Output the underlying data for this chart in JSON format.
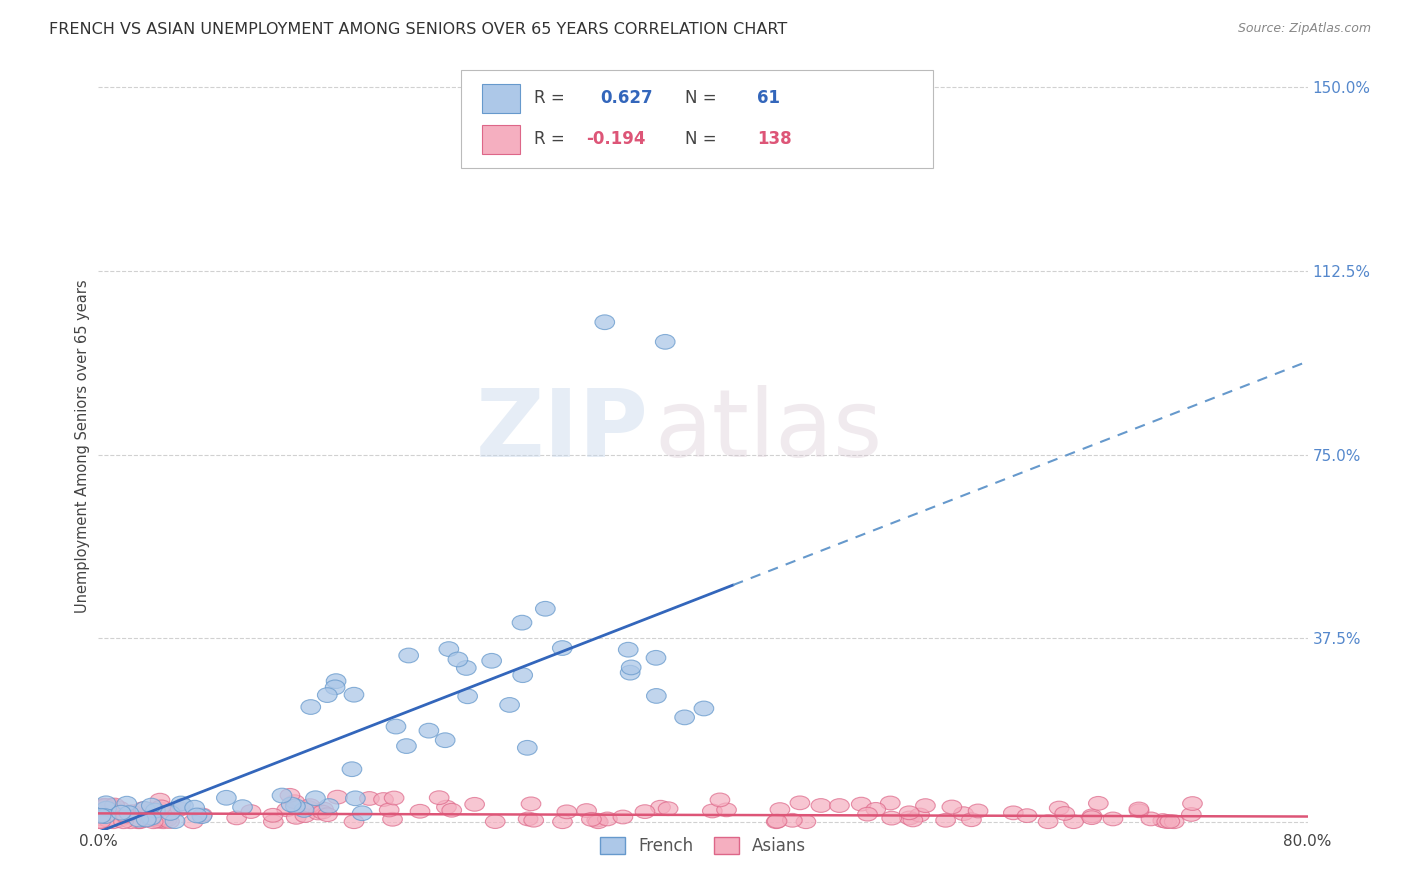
{
  "title": "FRENCH VS ASIAN UNEMPLOYMENT AMONG SENIORS OVER 65 YEARS CORRELATION CHART",
  "source": "Source: ZipAtlas.com",
  "ylabel": "Unemployment Among Seniors over 65 years",
  "xmin": 0.0,
  "xmax": 0.8,
  "ymin": -0.015,
  "ymax": 1.55,
  "french_color": "#adc8e8",
  "asian_color": "#f5afc0",
  "french_edge_color": "#6699cc",
  "asian_edge_color": "#dd6688",
  "french_line_color": "#3366bb",
  "asian_line_color": "#dd5577",
  "french_R": 0.627,
  "french_N": 61,
  "asian_R": -0.194,
  "asian_N": 138,
  "watermark_zip": "ZIP",
  "watermark_atlas": "atlas",
  "background_color": "#ffffff",
  "grid_color": "#cccccc",
  "y_tick_vals": [
    0.0,
    0.375,
    0.75,
    1.125,
    1.5
  ],
  "y_tick_labels": [
    "",
    "37.5%",
    "75.0%",
    "112.5%",
    "150.0%"
  ],
  "right_tick_color": "#5588cc",
  "title_color": "#333333",
  "source_color": "#888888"
}
